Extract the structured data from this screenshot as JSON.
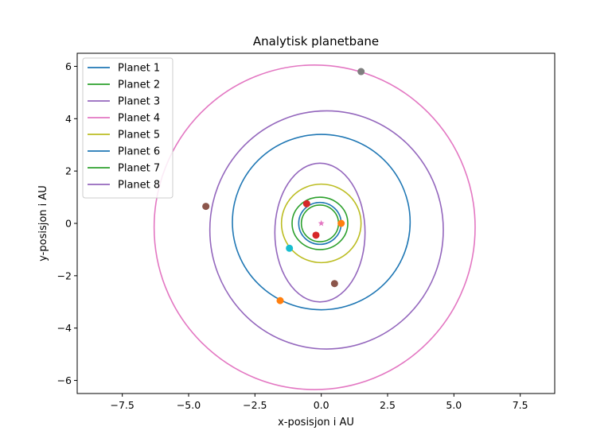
{
  "chart_data": {
    "type": "line",
    "title": "Analytisk planetbane",
    "xlabel": "x-posisjon i AU",
    "ylabel": "y-posisjon i AU",
    "xlim": [
      -9.2,
      8.8
    ],
    "ylim": [
      -6.5,
      6.5
    ],
    "x_ticks": [
      -7.5,
      -5.0,
      -2.5,
      0.0,
      2.5,
      5.0,
      7.5
    ],
    "x_tick_labels": [
      "−7.5",
      "−5.0",
      "−2.5",
      "0.0",
      "2.5",
      "5.0",
      "7.5"
    ],
    "y_ticks": [
      -6,
      -4,
      -2,
      0,
      2,
      4,
      6
    ],
    "y_tick_labels": [
      "−6",
      "−4",
      "−2",
      "0",
      "2",
      "4",
      "6"
    ],
    "grid": false,
    "legend_position": "top-left",
    "star": {
      "x": 0.0,
      "y": 0.0,
      "color": "#e377c2"
    },
    "series": [
      {
        "name": "Planet 1",
        "color": "#1f77b4",
        "orbit": {
          "cx": -0.05,
          "cy": 0.0,
          "rx": 0.8,
          "ry": 0.8
        },
        "marker": {
          "x": 0.75,
          "y": 0.0,
          "color": "#ff7f0e"
        }
      },
      {
        "name": "Planet 2",
        "color": "#2ca02c",
        "orbit": {
          "cx": -0.05,
          "cy": 0.0,
          "rx": 1.05,
          "ry": 1.0
        },
        "marker": {
          "x": -0.2,
          "y": -0.45,
          "color": "#d62728"
        }
      },
      {
        "name": "Planet 3",
        "color": "#9467bd",
        "orbit": {
          "cx": -0.05,
          "cy": -0.35,
          "rx": 1.7,
          "ry": 2.65
        },
        "marker": {
          "x": 0.5,
          "y": -2.3,
          "color": "#8c564b"
        }
      },
      {
        "name": "Planet 4",
        "color": "#e377c2",
        "orbit": {
          "cx": -0.25,
          "cy": -0.15,
          "rx": 6.05,
          "ry": 6.2
        },
        "marker": {
          "x": 1.5,
          "y": 5.8,
          "color": "#7f7f7f"
        }
      },
      {
        "name": "Planet 5",
        "color": "#bcbd22",
        "orbit": {
          "cx": 0.0,
          "cy": 0.0,
          "rx": 1.5,
          "ry": 1.5
        },
        "marker": {
          "x": -1.2,
          "y": -0.95,
          "color": "#17becf"
        }
      },
      {
        "name": "Planet 6",
        "color": "#1f77b4",
        "orbit": {
          "cx": 0.0,
          "cy": 0.05,
          "rx": 3.35,
          "ry": 3.35
        },
        "marker": {
          "x": -1.55,
          "y": -2.95,
          "color": "#ff7f0e"
        }
      },
      {
        "name": "Planet 7",
        "color": "#2ca02c",
        "orbit": {
          "cx": -0.05,
          "cy": 0.0,
          "rx": 0.7,
          "ry": 0.7
        },
        "marker": {
          "x": -0.55,
          "y": 0.75,
          "color": "#d62728"
        }
      },
      {
        "name": "Planet 8",
        "color": "#9467bd",
        "orbit": {
          "cx": 0.2,
          "cy": -0.25,
          "rx": 4.4,
          "ry": 4.55
        },
        "marker": {
          "x": -4.35,
          "y": 0.65,
          "color": "#8c564b"
        }
      }
    ]
  }
}
